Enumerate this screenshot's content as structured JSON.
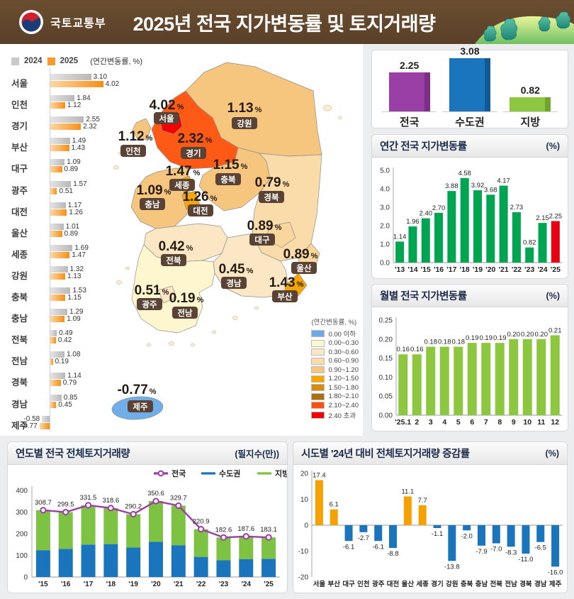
{
  "header": {
    "agency": "국토교통부",
    "title": "2025년 전국 지가변동률 및 토지거래량"
  },
  "regional_bars_legend": {
    "y2024": "2024",
    "y2025": "2025",
    "note": "(연간변동률, %)"
  },
  "map": {
    "legend_title": "(연간변동률, %)",
    "legend": [
      {
        "label": "0.00 이하",
        "color": "#6fa9e6"
      },
      {
        "label": "0.00~0.30",
        "color": "#fdf6cf"
      },
      {
        "label": "0.30~0.60",
        "color": "#fbe7c4"
      },
      {
        "label": "0.60~0.90",
        "color": "#f9dca9"
      },
      {
        "label": "0.90~1.20",
        "color": "#f6c57e"
      },
      {
        "label": "1.20~1.50",
        "color": "#f7a600"
      },
      {
        "label": "1.50~1.80",
        "color": "#d88c0c"
      },
      {
        "label": "1.80~2.10",
        "color": "#a9720e"
      },
      {
        "label": "2.10~2.40",
        "color": "#ff4e11"
      },
      {
        "label": "2.40 초과",
        "color": "#f00000"
      }
    ],
    "regions": [
      {
        "name": "서울",
        "value": 4.02,
        "fill": "#f40000"
      },
      {
        "name": "인천",
        "value": 1.12,
        "fill": "#f6c57e"
      },
      {
        "name": "경기",
        "value": 2.32,
        "fill": "#ff5a15"
      },
      {
        "name": "강원",
        "value": 1.13,
        "fill": "#f6c57e"
      },
      {
        "name": "충북",
        "value": 1.15,
        "fill": "#f6c57e"
      },
      {
        "name": "세종",
        "value": 1.47,
        "fill": "#f7a600"
      },
      {
        "name": "대전",
        "value": 1.26,
        "fill": "#f7a600"
      },
      {
        "name": "충남",
        "value": 1.09,
        "fill": "#f6c57e"
      },
      {
        "name": "경북",
        "value": 0.79,
        "fill": "#f9dca9"
      },
      {
        "name": "대구",
        "value": 0.89,
        "fill": "#f8d69c"
      },
      {
        "name": "울산",
        "value": 0.89,
        "fill": "#f8d69c"
      },
      {
        "name": "부산",
        "value": 1.43,
        "fill": "#f7a600"
      },
      {
        "name": "전북",
        "value": 0.42,
        "fill": "#fbe7c4"
      },
      {
        "name": "경남",
        "value": 0.45,
        "fill": "#fbe7c4"
      },
      {
        "name": "광주",
        "value": 0.51,
        "fill": "#fbe7c4"
      },
      {
        "name": "전남",
        "value": 0.19,
        "fill": "#fdf6cf"
      },
      {
        "name": "제주",
        "value": -0.77,
        "fill": "#70aeea"
      }
    ]
  },
  "panels": {
    "annual": {
      "title": "연간 전국 지가변동률",
      "unit": "(%)"
    },
    "monthly": {
      "title": "월별 전국 지가변동률",
      "unit": "(%)"
    },
    "volume": {
      "title": "연도별 전국 전체토지거래량",
      "unit": "(필지수(만))"
    },
    "sido": {
      "title": "시도별 '24년 대비 전체토지거래량 증감률",
      "unit": "(%)"
    }
  },
  "chart_data": [
    {
      "id": "regional_dual",
      "type": "bar",
      "orientation": "horizontal",
      "title": "(연간변동률, %)",
      "categories": [
        "서울",
        "인천",
        "경기",
        "부산",
        "대구",
        "광주",
        "대전",
        "울산",
        "세종",
        "강원",
        "충북",
        "충남",
        "전북",
        "전남",
        "경북",
        "경남",
        "제주"
      ],
      "series": [
        {
          "name": "2024",
          "color": "#c9c9c9",
          "values": [
            3.1,
            1.84,
            2.55,
            1.49,
            1.09,
            1.57,
            1.17,
            1.01,
            1.69,
            1.32,
            1.53,
            1.29,
            0.49,
            1.08,
            1.14,
            0.85,
            -0.58
          ]
        },
        {
          "name": "2025",
          "color": "#f79a2b",
          "values": [
            4.02,
            1.12,
            2.32,
            1.43,
            0.89,
            0.51,
            1.26,
            0.89,
            1.47,
            1.13,
            1.15,
            1.09,
            0.42,
            0.19,
            0.79,
            0.45,
            -0.77
          ]
        }
      ]
    },
    {
      "id": "summary",
      "type": "bar",
      "categories": [
        "전국",
        "수도권",
        "지방"
      ],
      "values": [
        2.25,
        3.08,
        0.82
      ],
      "colors": [
        "#9a3fa5",
        "#1b75bc",
        "#8dc63f"
      ],
      "edge_colors": [
        "#7c2f87",
        "#125a94",
        "#6fa52f"
      ]
    },
    {
      "id": "annual",
      "type": "bar",
      "title": "연간 전국 지가변동률",
      "ylabel": "%",
      "ylim": [
        0,
        5
      ],
      "categories": [
        "'13",
        "'14",
        "'15",
        "'16",
        "'17",
        "'18",
        "'19",
        "'20",
        "'21",
        "'22",
        "'23",
        "'24",
        "'25"
      ],
      "values": [
        1.14,
        1.96,
        2.4,
        2.7,
        3.88,
        4.58,
        3.92,
        3.68,
        4.17,
        2.73,
        0.82,
        2.15,
        2.25
      ],
      "bar_color": "#00a551",
      "last_bar_color": "#e60012"
    },
    {
      "id": "monthly",
      "type": "bar",
      "title": "월별 전국 지가변동률",
      "ylabel": "%",
      "ylim": [
        0,
        0.25
      ],
      "categories": [
        "'25.1",
        "2",
        "3",
        "4",
        "5",
        "6",
        "7",
        "8",
        "9",
        "10",
        "11",
        "12"
      ],
      "values": [
        0.16,
        0.16,
        0.18,
        0.18,
        0.18,
        0.19,
        0.19,
        0.19,
        0.2,
        0.2,
        0.2,
        0.21
      ],
      "bar_color": "#8dc63f"
    },
    {
      "id": "volume",
      "type": "stacked-bar-line",
      "title": "연도별 전국 전체토지거래량",
      "ylabel": "필지수(만)",
      "ylim": [
        0,
        400
      ],
      "categories": [
        "'15",
        "'16",
        "'17",
        "'18",
        "'19",
        "'20",
        "'21",
        "'22",
        "'23",
        "'24",
        "'25"
      ],
      "series": [
        {
          "name": "전국",
          "type": "line",
          "color": "#9b3fa5",
          "values": [
            308.7,
            299.5,
            331.5,
            318.6,
            290.2,
            350.6,
            329.7,
            220.9,
            182.6,
            187.6,
            183.1
          ]
        },
        {
          "name": "수도권",
          "type": "bar",
          "color": "#1b75bc",
          "values": [
            124,
            130,
            150,
            152,
            136,
            163,
            147,
            93,
            77,
            82,
            84
          ]
        },
        {
          "name": "지방",
          "type": "bar",
          "color": "#7dc242",
          "values": [
            184.7,
            169.5,
            181.5,
            166.6,
            154.2,
            187.6,
            182.7,
            127.9,
            105.6,
            105.6,
            99.1
          ]
        }
      ],
      "legend_position": "top-right"
    },
    {
      "id": "sido_change",
      "type": "bar",
      "title": "시도별 '24년 대비 전체토지거래량 증감률",
      "ylabel": "%",
      "ylim": [
        -20,
        20
      ],
      "categories": [
        "서울",
        "부산",
        "대구",
        "인천",
        "광주",
        "대전",
        "울산",
        "세종",
        "경기",
        "강원",
        "충북",
        "충남",
        "전북",
        "전남",
        "경북",
        "경남",
        "제주"
      ],
      "values": [
        17.4,
        6.1,
        -6.1,
        -2.7,
        -6.1,
        -8.8,
        11.1,
        7.7,
        -1.1,
        -13.8,
        -2.0,
        -7.9,
        -7.0,
        -8.3,
        -11.0,
        -6.5,
        -16.0
      ],
      "positive_color": "#f5a200",
      "negative_color": "#1b75bc"
    }
  ]
}
